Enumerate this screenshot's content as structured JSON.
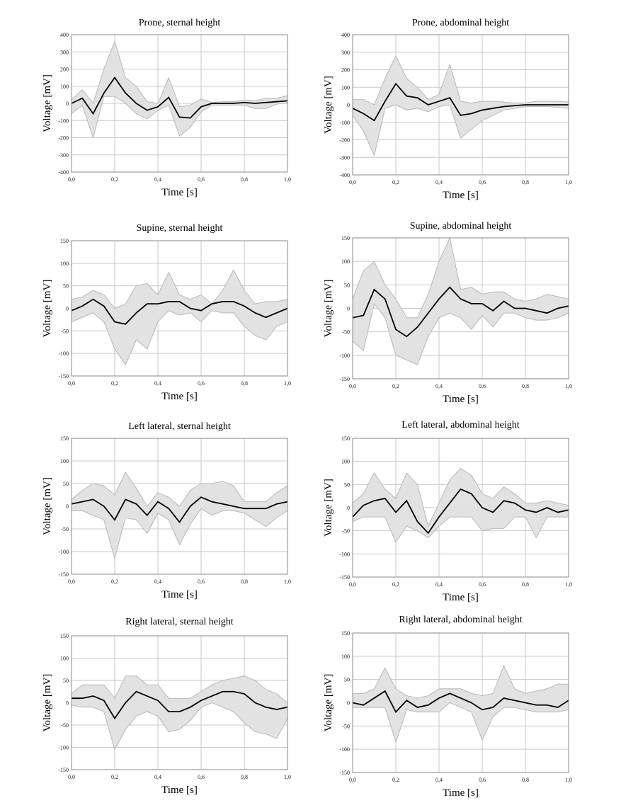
{
  "chart_data": [
    {
      "type": "area",
      "title": "Prone, sternal height",
      "xlabel": "Time [s]",
      "ylabel": "Voltage [mV]",
      "xlim": [
        0,
        1
      ],
      "ylim": [
        -400,
        400
      ],
      "ystep": 100,
      "grid": true,
      "xticks": [
        "0,0",
        "0,2",
        "0,4",
        "0,6",
        "0,8",
        "1,0"
      ],
      "yticks": [
        "-400",
        "-300",
        "-200",
        "-100",
        "0",
        "100",
        "200",
        "300",
        "400"
      ],
      "x": [
        0,
        0.05,
        0.1,
        0.15,
        0.2,
        0.25,
        0.3,
        0.35,
        0.4,
        0.45,
        0.5,
        0.55,
        0.6,
        0.65,
        0.7,
        0.75,
        0.8,
        0.85,
        0.9,
        0.95,
        1.0
      ],
      "series": [
        {
          "name": "mean",
          "values": [
            0,
            30,
            -60,
            60,
            150,
            60,
            0,
            -40,
            -20,
            35,
            -80,
            -85,
            -20,
            0,
            0,
            0,
            5,
            0,
            5,
            10,
            15
          ]
        },
        {
          "name": "upper",
          "values": [
            20,
            80,
            0,
            200,
            360,
            150,
            100,
            10,
            0,
            150,
            -20,
            -10,
            25,
            5,
            10,
            10,
            20,
            15,
            30,
            30,
            45
          ]
        },
        {
          "name": "lower",
          "values": [
            -60,
            -10,
            -200,
            40,
            40,
            0,
            -60,
            -90,
            -40,
            -10,
            -190,
            -140,
            -50,
            -10,
            -10,
            -10,
            -10,
            -30,
            -30,
            -5,
            5
          ]
        }
      ]
    },
    {
      "type": "area",
      "title": "Prone, abdominal height",
      "xlabel": "Time [s]",
      "ylabel": "Voltage [mV]",
      "xlim": [
        0,
        1
      ],
      "ylim": [
        -400,
        400
      ],
      "ystep": 100,
      "grid": true,
      "xticks": [
        "0,0",
        "0,2",
        "0,4",
        "0,6",
        "0,8",
        "1,0"
      ],
      "yticks": [
        "-400",
        "-300",
        "-200",
        "-100",
        "0",
        "100",
        "200",
        "300",
        "400"
      ],
      "x": [
        0,
        0.05,
        0.1,
        0.15,
        0.2,
        0.25,
        0.3,
        0.35,
        0.4,
        0.45,
        0.5,
        0.55,
        0.6,
        0.65,
        0.7,
        0.75,
        0.8,
        0.85,
        0.9,
        0.95,
        1.0
      ],
      "series": [
        {
          "name": "mean",
          "values": [
            -20,
            -50,
            -90,
            20,
            120,
            50,
            40,
            0,
            20,
            40,
            -60,
            -50,
            -30,
            -20,
            -10,
            -5,
            0,
            0,
            0,
            0,
            0
          ]
        },
        {
          "name": "upper",
          "values": [
            30,
            30,
            0,
            150,
            280,
            150,
            100,
            30,
            60,
            230,
            20,
            10,
            20,
            20,
            15,
            10,
            10,
            20,
            20,
            20,
            15
          ]
        },
        {
          "name": "lower",
          "values": [
            -60,
            -150,
            -290,
            -20,
            0,
            -30,
            -20,
            -40,
            -10,
            0,
            -190,
            -140,
            -90,
            -60,
            -30,
            -20,
            -10,
            -10,
            -10,
            -15,
            -20
          ]
        }
      ]
    },
    {
      "type": "area",
      "title": "Supine, sternal height",
      "xlabel": "Time [s]",
      "ylabel": "Voltage [mV]",
      "xlim": [
        0,
        1
      ],
      "ylim": [
        -150,
        150
      ],
      "ystep": 50,
      "grid": true,
      "xticks": [
        "0,0",
        "0,2",
        "0,4",
        "0,6",
        "0,8",
        "1,0"
      ],
      "yticks": [
        "-150",
        "-100",
        "-50",
        "0",
        "50",
        "100",
        "150"
      ],
      "x": [
        0,
        0.05,
        0.1,
        0.15,
        0.2,
        0.25,
        0.3,
        0.35,
        0.4,
        0.45,
        0.5,
        0.55,
        0.6,
        0.65,
        0.7,
        0.75,
        0.8,
        0.85,
        0.9,
        0.95,
        1.0
      ],
      "series": [
        {
          "name": "mean",
          "values": [
            -5,
            5,
            20,
            5,
            -30,
            -35,
            -10,
            10,
            10,
            15,
            15,
            0,
            -5,
            10,
            15,
            15,
            5,
            -10,
            -20,
            -10,
            0
          ]
        },
        {
          "name": "upper",
          "values": [
            20,
            25,
            40,
            30,
            0,
            10,
            50,
            55,
            30,
            80,
            30,
            20,
            30,
            10,
            40,
            85,
            40,
            10,
            15,
            15,
            20
          ]
        },
        {
          "name": "lower",
          "values": [
            -30,
            -20,
            -10,
            -30,
            -90,
            -125,
            -70,
            -90,
            -30,
            -5,
            -15,
            -10,
            -30,
            -5,
            -10,
            -10,
            -40,
            -60,
            -70,
            -40,
            -30
          ]
        }
      ]
    },
    {
      "type": "area",
      "title": "Supine, abdominal height",
      "xlabel": "Time [s]",
      "ylabel": "Voltage [mV]",
      "xlim": [
        0,
        1
      ],
      "ylim": [
        -150,
        150
      ],
      "ystep": 50,
      "grid": true,
      "xticks": [
        "0,0",
        "0,2",
        "0,4",
        "0,6",
        "0,8",
        "1,0"
      ],
      "yticks": [
        "-150",
        "-100",
        "-50",
        "0",
        "50",
        "100",
        "150"
      ],
      "x": [
        0,
        0.05,
        0.1,
        0.15,
        0.2,
        0.25,
        0.3,
        0.35,
        0.4,
        0.45,
        0.5,
        0.55,
        0.6,
        0.65,
        0.7,
        0.75,
        0.8,
        0.85,
        0.9,
        0.95,
        1.0
      ],
      "series": [
        {
          "name": "mean",
          "values": [
            -20,
            -15,
            40,
            20,
            -45,
            -60,
            -40,
            -10,
            20,
            45,
            20,
            10,
            10,
            -5,
            15,
            0,
            0,
            -5,
            -10,
            0,
            5
          ]
        },
        {
          "name": "upper",
          "values": [
            20,
            80,
            100,
            50,
            20,
            -20,
            -20,
            30,
            100,
            150,
            40,
            45,
            30,
            35,
            35,
            20,
            15,
            20,
            30,
            25,
            20
          ]
        },
        {
          "name": "lower",
          "values": [
            -70,
            -90,
            10,
            -20,
            -100,
            -110,
            -120,
            -60,
            -20,
            -10,
            -20,
            -45,
            -15,
            -40,
            -10,
            -10,
            -20,
            -25,
            -25,
            -20,
            -10
          ]
        }
      ]
    },
    {
      "type": "area",
      "title": "Left lateral, sternal height",
      "xlabel": "Time [s]",
      "ylabel": "Voltage [mV]",
      "xlim": [
        0,
        1
      ],
      "ylim": [
        -150,
        150
      ],
      "ystep": 50,
      "grid": true,
      "xticks": [
        "0,0",
        "0,2",
        "0,4",
        "0,6",
        "0,8",
        "1,0"
      ],
      "yticks": [
        "-150",
        "-100",
        "-50",
        "0",
        "50",
        "100",
        "150"
      ],
      "x": [
        0,
        0.05,
        0.1,
        0.15,
        0.2,
        0.25,
        0.3,
        0.35,
        0.4,
        0.45,
        0.5,
        0.55,
        0.6,
        0.65,
        0.7,
        0.75,
        0.8,
        0.85,
        0.9,
        0.95,
        1.0
      ],
      "series": [
        {
          "name": "mean",
          "values": [
            5,
            10,
            15,
            0,
            -30,
            15,
            5,
            -20,
            10,
            -5,
            -35,
            0,
            20,
            10,
            5,
            0,
            -5,
            -5,
            -5,
            5,
            10
          ]
        },
        {
          "name": "upper",
          "values": [
            15,
            35,
            50,
            45,
            25,
            75,
            40,
            0,
            30,
            20,
            0,
            35,
            50,
            50,
            55,
            45,
            10,
            10,
            10,
            30,
            45
          ]
        },
        {
          "name": "lower",
          "values": [
            -10,
            -10,
            -20,
            -30,
            -115,
            -25,
            -30,
            -60,
            -15,
            -30,
            -85,
            -40,
            -5,
            -20,
            -10,
            -10,
            -15,
            -30,
            -45,
            -25,
            -10
          ]
        }
      ]
    },
    {
      "type": "area",
      "title": "Left lateral, abdominal height",
      "xlabel": "Time [s]",
      "ylabel": "Voltage [mV]",
      "xlim": [
        0,
        1
      ],
      "ylim": [
        -150,
        150
      ],
      "ystep": 50,
      "grid": true,
      "xticks": [
        "0,0",
        "0,2",
        "0,4",
        "0,6",
        "0,8",
        "1,0"
      ],
      "yticks": [
        "-150",
        "-100",
        "-50",
        "0",
        "50",
        "100",
        "150"
      ],
      "x": [
        0,
        0.05,
        0.1,
        0.15,
        0.2,
        0.25,
        0.3,
        0.35,
        0.4,
        0.45,
        0.5,
        0.55,
        0.6,
        0.65,
        0.7,
        0.75,
        0.8,
        0.85,
        0.9,
        0.95,
        1.0
      ],
      "series": [
        {
          "name": "mean",
          "values": [
            -20,
            5,
            15,
            20,
            -10,
            15,
            -30,
            -55,
            -20,
            10,
            40,
            30,
            0,
            -10,
            15,
            10,
            -5,
            -10,
            0,
            -10,
            -5
          ]
        },
        {
          "name": "upper",
          "values": [
            10,
            30,
            75,
            40,
            20,
            75,
            50,
            -40,
            10,
            60,
            85,
            70,
            30,
            20,
            45,
            30,
            10,
            10,
            15,
            10,
            5
          ]
        },
        {
          "name": "lower",
          "values": [
            -30,
            -20,
            -20,
            -20,
            -75,
            -40,
            -50,
            -65,
            -40,
            -20,
            -20,
            -20,
            -50,
            -45,
            -45,
            -20,
            -20,
            -65,
            -20,
            -20,
            -20
          ]
        }
      ]
    },
    {
      "type": "area",
      "title": "Right lateral, sternal height",
      "xlabel": "Time [s]",
      "ylabel": "Voltage [mV]",
      "xlim": [
        0,
        1
      ],
      "ylim": [
        -150,
        150
      ],
      "ystep": 50,
      "grid": true,
      "xticks": [
        "0,0",
        "0,2",
        "0,4",
        "0,6",
        "0,8",
        "1,0"
      ],
      "yticks": [
        "-150",
        "-100",
        "-50",
        "0",
        "50",
        "100",
        "150"
      ],
      "x": [
        0,
        0.05,
        0.1,
        0.15,
        0.2,
        0.25,
        0.3,
        0.35,
        0.4,
        0.45,
        0.5,
        0.55,
        0.6,
        0.65,
        0.7,
        0.75,
        0.8,
        0.85,
        0.9,
        0.95,
        1.0
      ],
      "series": [
        {
          "name": "mean",
          "values": [
            10,
            10,
            15,
            5,
            -35,
            0,
            25,
            15,
            5,
            -20,
            -20,
            -10,
            5,
            15,
            25,
            25,
            20,
            0,
            -10,
            -15,
            -10
          ]
        },
        {
          "name": "upper",
          "values": [
            20,
            40,
            40,
            40,
            10,
            60,
            60,
            40,
            40,
            10,
            10,
            10,
            25,
            40,
            50,
            55,
            60,
            50,
            30,
            20,
            0
          ]
        },
        {
          "name": "lower",
          "values": [
            -5,
            -10,
            -10,
            -20,
            -105,
            -60,
            -30,
            -20,
            -30,
            -65,
            -60,
            -40,
            -10,
            0,
            -10,
            -20,
            -45,
            -65,
            -70,
            -80,
            -35
          ]
        }
      ]
    },
    {
      "type": "area",
      "title": "Right lateral, abdominal height",
      "xlabel": "Time [s]",
      "ylabel": "Voltage [mV]",
      "xlim": [
        0,
        1
      ],
      "ylim": [
        -150,
        150
      ],
      "ystep": 50,
      "grid": true,
      "xticks": [
        "0,0",
        "0,2",
        "0,4",
        "0,6",
        "0,8",
        "1,0"
      ],
      "yticks": [
        "-150",
        "-100",
        "-50",
        "0",
        "50",
        "100",
        "150"
      ],
      "x": [
        0,
        0.05,
        0.1,
        0.15,
        0.2,
        0.25,
        0.3,
        0.35,
        0.4,
        0.45,
        0.5,
        0.55,
        0.6,
        0.65,
        0.7,
        0.75,
        0.8,
        0.85,
        0.9,
        0.95,
        1.0
      ],
      "series": [
        {
          "name": "mean",
          "values": [
            0,
            -5,
            10,
            25,
            -20,
            5,
            -10,
            -5,
            10,
            20,
            10,
            0,
            -15,
            -10,
            10,
            5,
            0,
            -5,
            -5,
            -10,
            5
          ]
        },
        {
          "name": "upper",
          "values": [
            20,
            20,
            30,
            75,
            30,
            15,
            10,
            15,
            30,
            30,
            30,
            20,
            15,
            20,
            80,
            30,
            20,
            25,
            30,
            40,
            40
          ]
        },
        {
          "name": "lower",
          "values": [
            -10,
            -10,
            -10,
            -10,
            -85,
            -15,
            -20,
            -20,
            -20,
            0,
            -10,
            -20,
            -80,
            -30,
            -10,
            -10,
            -15,
            -20,
            -20,
            -20,
            -15
          ]
        }
      ]
    }
  ]
}
